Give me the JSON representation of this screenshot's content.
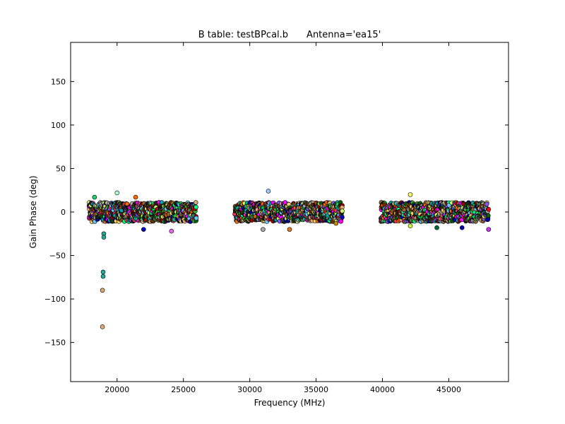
{
  "chart_data": {
    "type": "scatter",
    "title_left": "B table: testBPcal.b",
    "title_right": "Antenna='ea15'",
    "xlabel": "Frequency (MHz)",
    "ylabel": "Gain Phase (deg)",
    "xlim": [
      16500,
      49500
    ],
    "ylim": [
      -195,
      195
    ],
    "x_ticks": [
      20000,
      25000,
      30000,
      35000,
      40000,
      45000
    ],
    "x_tick_labels": [
      "20000",
      "25000",
      "30000",
      "35000",
      "40000",
      "45000"
    ],
    "y_ticks": [
      -150,
      -100,
      -50,
      0,
      50,
      100,
      150
    ],
    "y_tick_labels": [
      "−150",
      "−100",
      "−50",
      "0",
      "50",
      "100",
      "150"
    ],
    "grid": false,
    "legend": "none",
    "marker": "circle",
    "marker_edge_color": "#000000",
    "spectral_windows": [
      {
        "x_start": 17900,
        "x_end": 26000,
        "y_min": -11,
        "y_max": 11
      },
      {
        "x_start": 28900,
        "x_end": 37000,
        "y_min": -11,
        "y_max": 11
      },
      {
        "x_start": 39900,
        "x_end": 48000,
        "y_min": -11,
        "y_max": 11
      }
    ],
    "series_colors": [
      "#00ff88",
      "#ff6600",
      "#0000aa",
      "#ff00ff",
      "#66ccff",
      "#ffcc66",
      "#006600",
      "#aa0000",
      "#8855ff",
      "#ddaa77",
      "#00aaaa",
      "#663300",
      "#ccff66",
      "#222222",
      "#aaaaaa",
      "#ff3366",
      "#996633",
      "#33cc33"
    ],
    "notable_points": [
      {
        "x": 18300,
        "y": 17,
        "color": "#22cc66"
      },
      {
        "x": 20000,
        "y": 22,
        "color": "#aaffcc"
      },
      {
        "x": 21400,
        "y": 17,
        "color": "#ff6600"
      },
      {
        "x": 31400,
        "y": 24,
        "color": "#99ccff"
      },
      {
        "x": 42100,
        "y": 20,
        "color": "#ffff66"
      },
      {
        "x": 19000,
        "y": -25,
        "color": "#22aa99"
      },
      {
        "x": 19000,
        "y": -29,
        "color": "#22aa99"
      },
      {
        "x": 18950,
        "y": -69,
        "color": "#22aa99"
      },
      {
        "x": 18950,
        "y": -74,
        "color": "#22aa99"
      },
      {
        "x": 18900,
        "y": -90,
        "color": "#ddaa77"
      },
      {
        "x": 18900,
        "y": -132,
        "color": "#ddaa77"
      },
      {
        "x": 22000,
        "y": -20,
        "color": "#0000cc"
      },
      {
        "x": 24100,
        "y": -22,
        "color": "#ee66ee"
      },
      {
        "x": 31000,
        "y": -20,
        "color": "#aaaaaa"
      },
      {
        "x": 33000,
        "y": -20,
        "color": "#dd7722"
      },
      {
        "x": 36500,
        "y": -13,
        "color": "#cc8800"
      },
      {
        "x": 42100,
        "y": -16,
        "color": "#ccff33"
      },
      {
        "x": 44100,
        "y": -18,
        "color": "#006633"
      },
      {
        "x": 46000,
        "y": -18,
        "color": "#0000aa"
      },
      {
        "x": 48000,
        "y": -20,
        "color": "#cc33ff"
      },
      {
        "x": 48000,
        "y": 3,
        "color": "#ff0000"
      }
    ]
  }
}
